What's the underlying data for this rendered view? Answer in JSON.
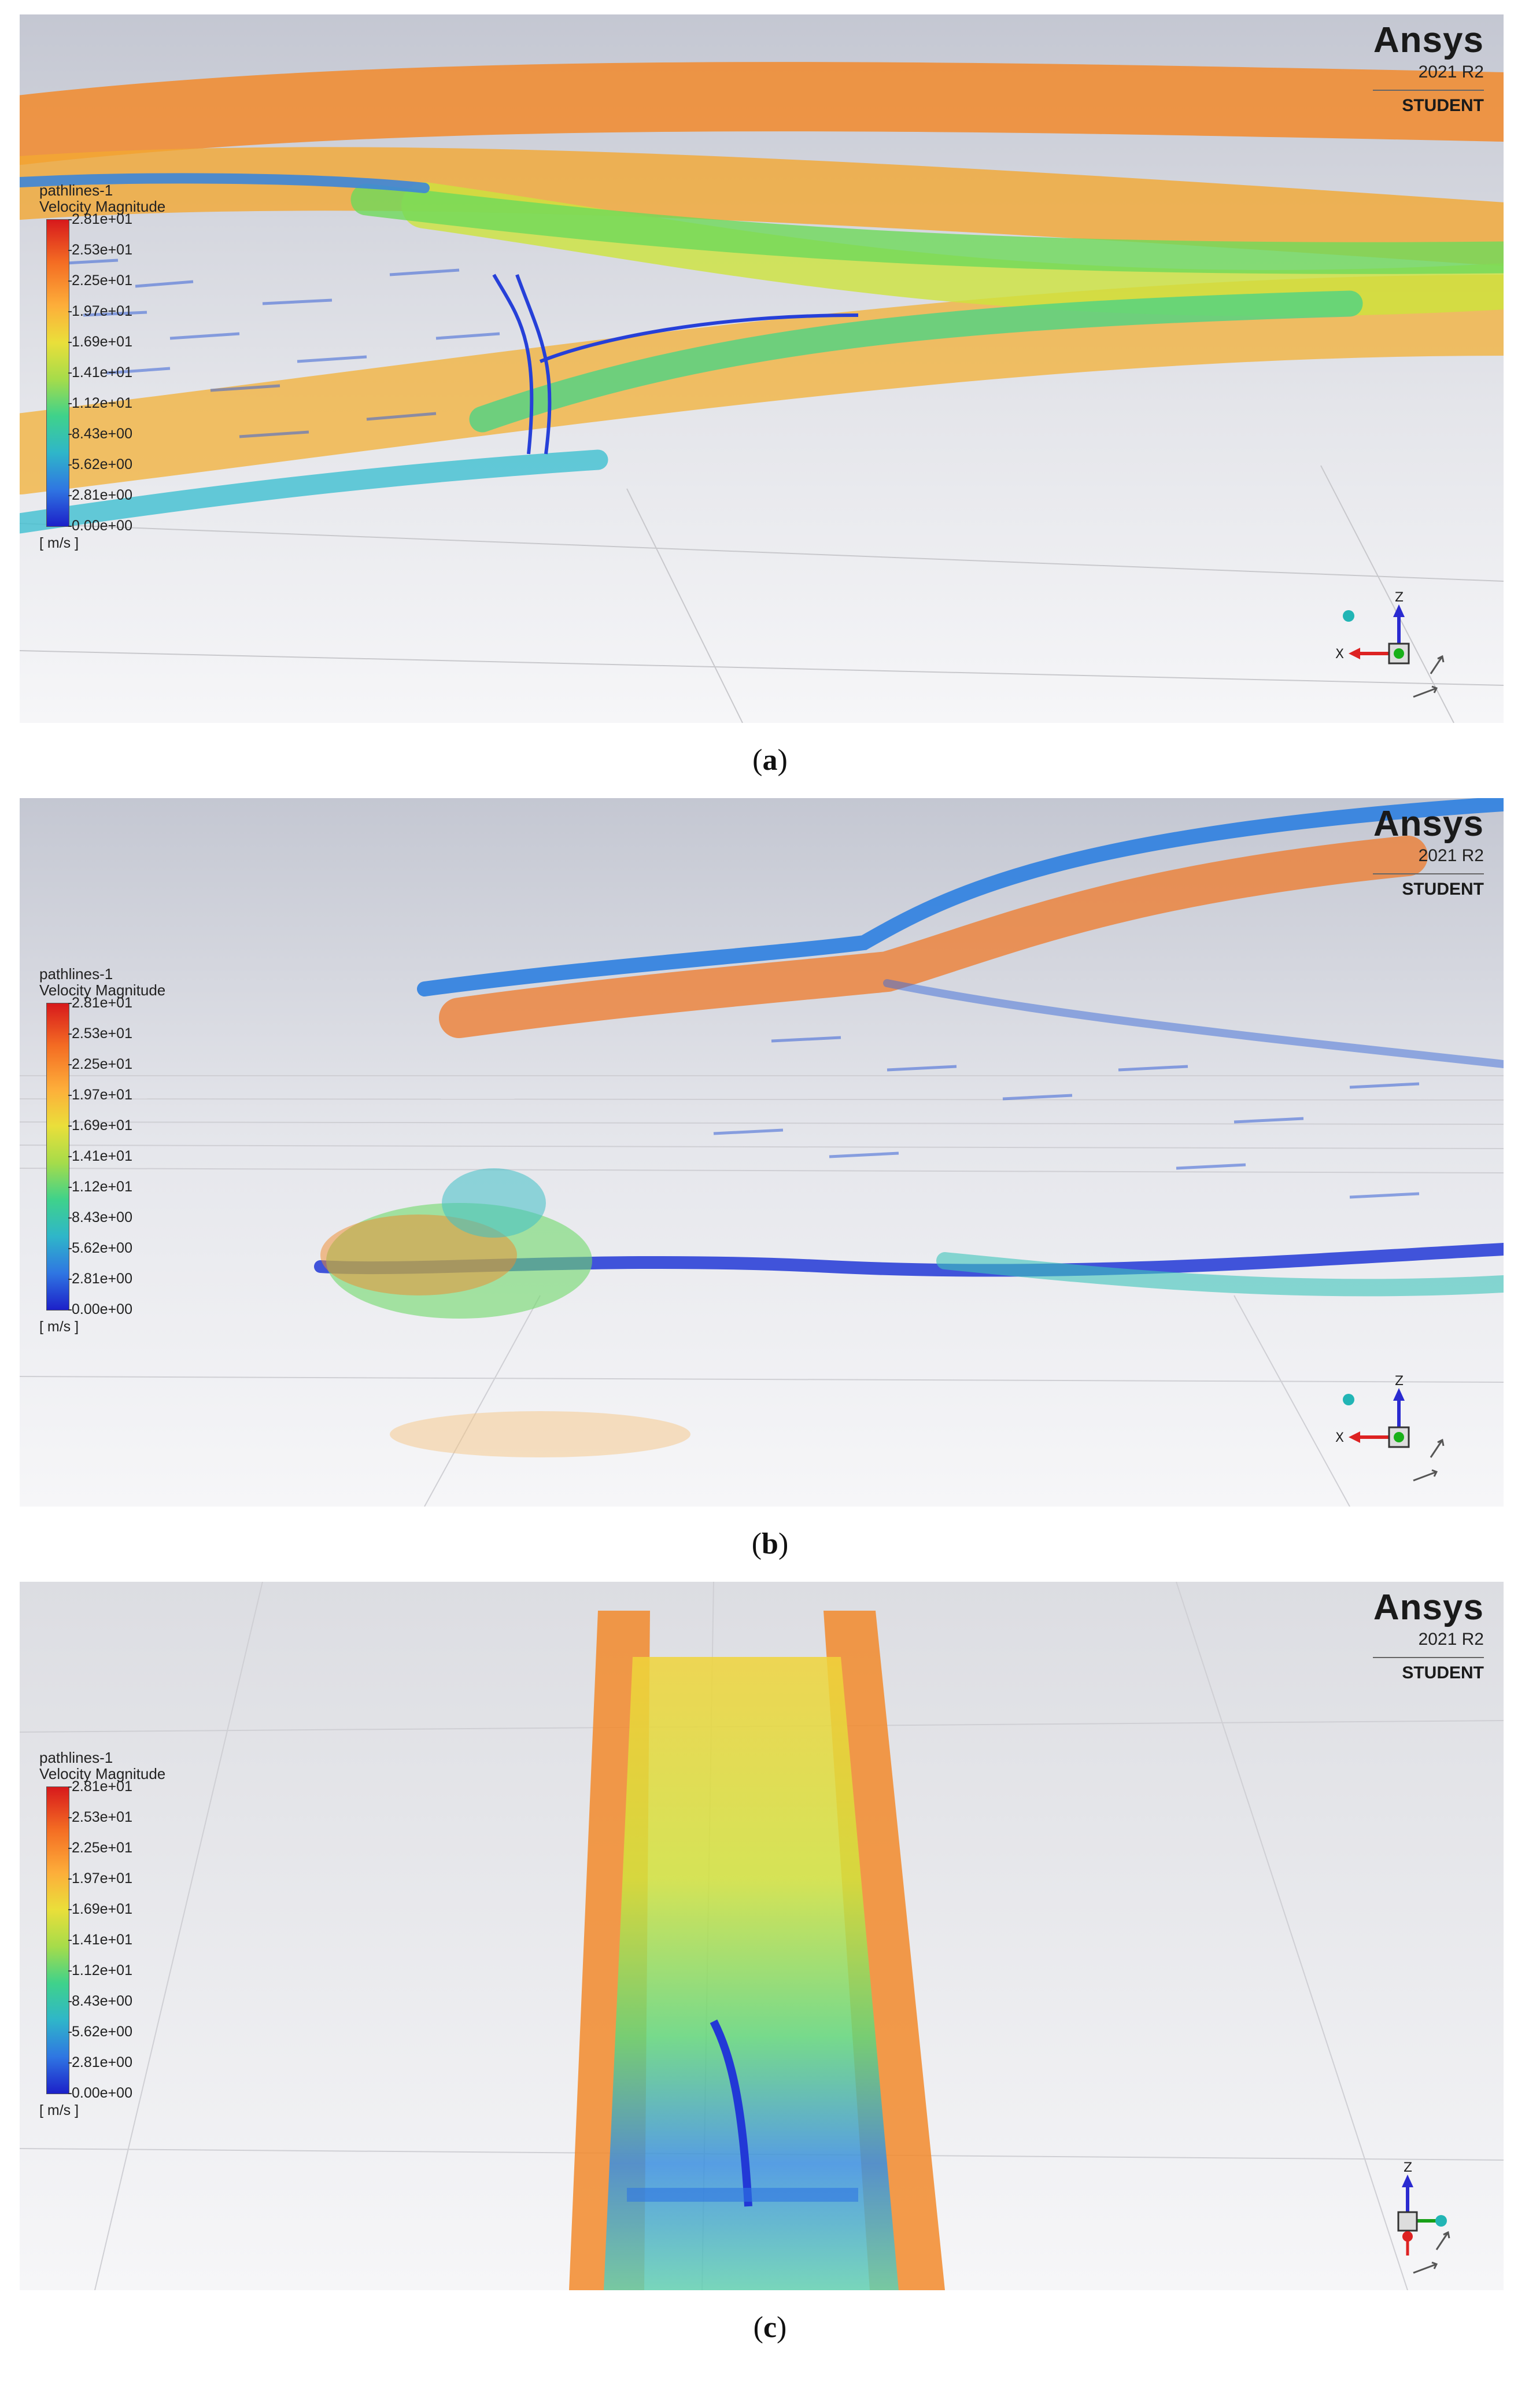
{
  "panels": [
    {
      "id": "a",
      "caption": "a",
      "legend": {
        "title_line1": "pathlines-1",
        "title_line2": "Velocity Magnitude",
        "ticks": [
          "2.81e+01",
          "2.53e+01",
          "2.25e+01",
          "1.97e+01",
          "1.69e+01",
          "1.41e+01",
          "1.12e+01",
          "8.43e+00",
          "5.62e+00",
          "2.81e+00",
          "0.00e+00"
        ],
        "unit": "[ m/s ]"
      },
      "brand": {
        "logo": "Ansys",
        "version": "2021 R2",
        "edition": "STUDENT"
      },
      "triad": {
        "labels": [
          "Z",
          "X"
        ]
      }
    },
    {
      "id": "b",
      "caption": "b",
      "legend": {
        "title_line1": "pathlines-1",
        "title_line2": "Velocity Magnitude",
        "ticks": [
          "2.81e+01",
          "2.53e+01",
          "2.25e+01",
          "1.97e+01",
          "1.69e+01",
          "1.41e+01",
          "1.12e+01",
          "8.43e+00",
          "5.62e+00",
          "2.81e+00",
          "0.00e+00"
        ],
        "unit": "[ m/s ]"
      },
      "brand": {
        "logo": "Ansys",
        "version": "2021 R2",
        "edition": "STUDENT"
      },
      "triad": {
        "labels": [
          "Z",
          "X"
        ]
      }
    },
    {
      "id": "c",
      "caption": "c",
      "legend": {
        "title_line1": "pathlines-1",
        "title_line2": "Velocity Magnitude",
        "ticks": [
          "2.81e+01",
          "2.53e+01",
          "2.25e+01",
          "1.97e+01",
          "1.69e+01",
          "1.41e+01",
          "1.12e+01",
          "8.43e+00",
          "5.62e+00",
          "2.81e+00",
          "0.00e+00"
        ],
        "unit": "[ m/s ]"
      },
      "brand": {
        "logo": "Ansys",
        "version": "2021 R2",
        "edition": "STUDENT"
      },
      "triad": {
        "labels": [
          "Z"
        ]
      }
    }
  ],
  "colors": {
    "high": "#d7191c",
    "orange": "#f5872a",
    "yellow": "#e9dc36",
    "green": "#5cd662",
    "cyan": "#2fc2c8",
    "blue": "#2448d8",
    "background_top": "#c9ccd6",
    "background_bottom": "#f4f5f7"
  }
}
